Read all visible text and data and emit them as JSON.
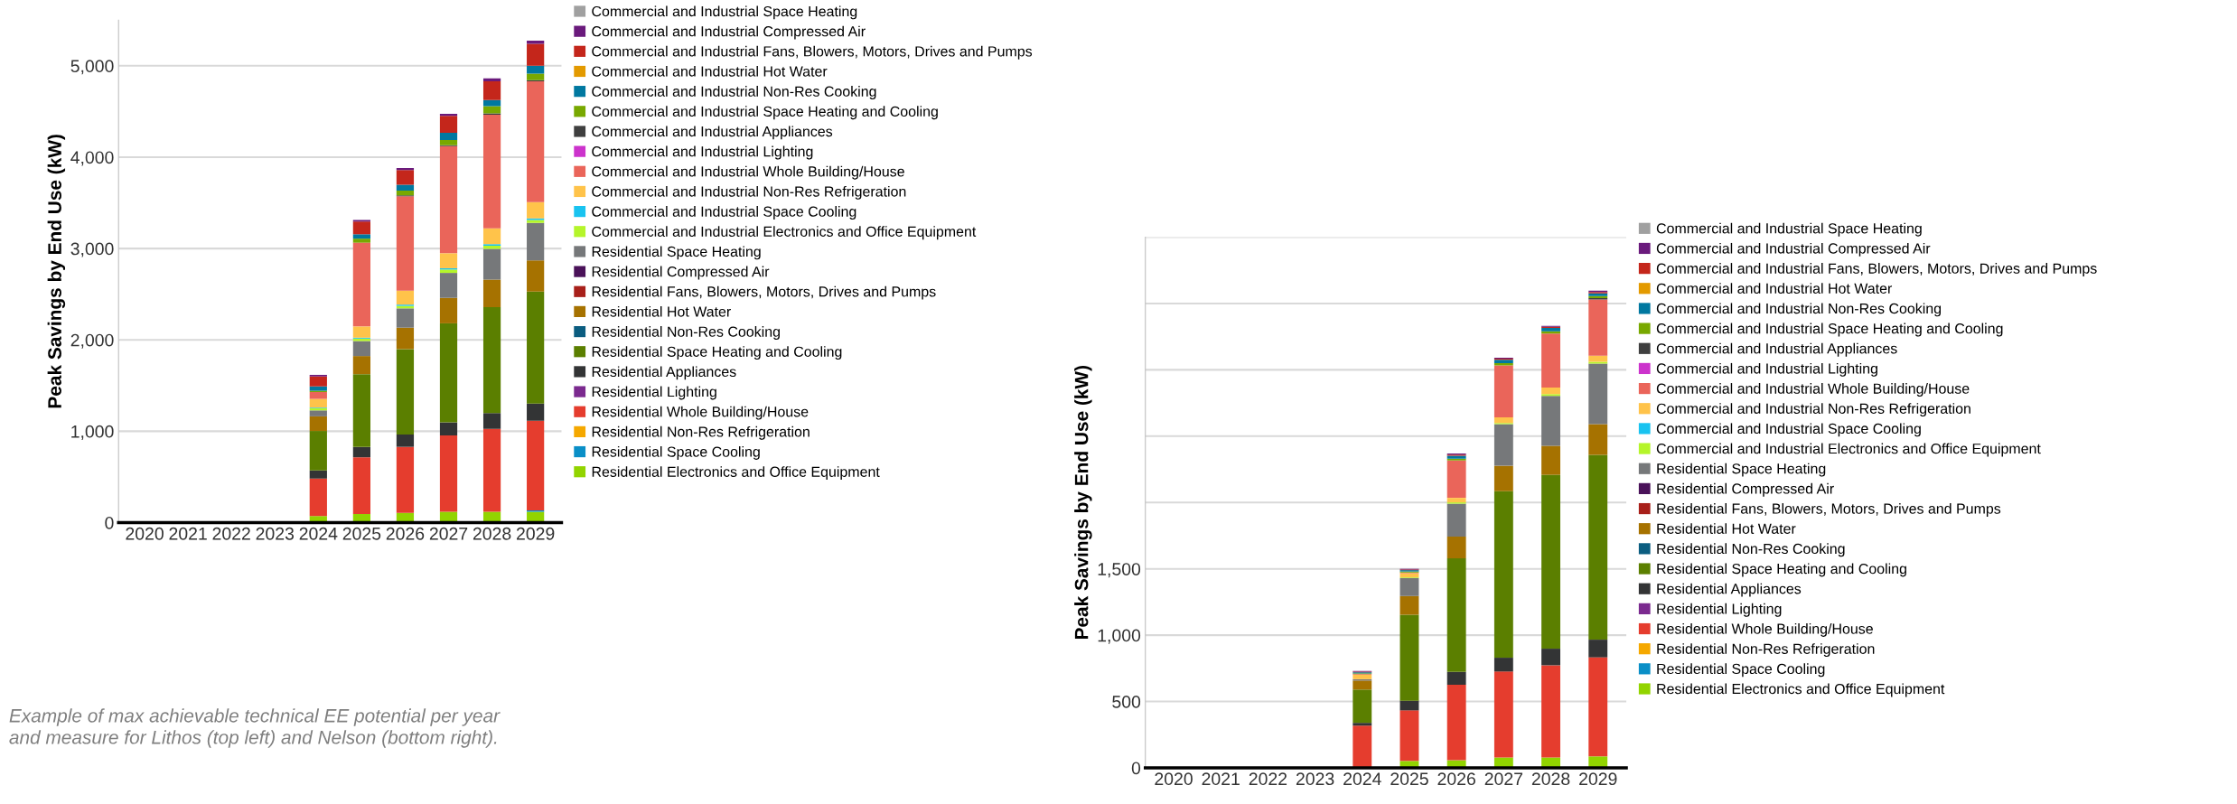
{
  "chart_data": [
    {
      "type": "bar",
      "stacked": true,
      "ylabel": "Peak Savings by End Use (kW)",
      "categories": [
        "2020",
        "2021",
        "2022",
        "2023",
        "2024",
        "2025",
        "2026",
        "2027",
        "2028",
        "2029"
      ],
      "ylim": [
        0,
        5500
      ],
      "yticks": [
        0,
        {
          "value": 1000,
          "label": "1,000"
        },
        {
          "value": 2000,
          "label": "2,000"
        },
        {
          "value": 3000,
          "label": "3,000"
        },
        {
          "value": 4000,
          "label": "4,000"
        },
        {
          "value": 5000,
          "label": "5,000"
        }
      ],
      "grid": "y",
      "legend": "right",
      "annotations": [
        "Example of max achievable technical EE potential per year\nand measure for Lithos (top left) and Nelson (bottom right)."
      ],
      "series": [
        {
          "name": "Residential Electronics and Office Equipment",
          "color": "#92d400",
          "values": [
            0,
            0,
            0,
            0,
            72,
            95,
            106,
            119,
            119,
            119
          ]
        },
        {
          "name": "Residential Space Cooling",
          "color": "#0a8fc7",
          "values": [
            0,
            0,
            0,
            0,
            0,
            0,
            0,
            0,
            0,
            14
          ]
        },
        {
          "name": "Residential Non-Res Refrigeration",
          "color": "#f5a800",
          "values": [
            0,
            0,
            0,
            0,
            0,
            0,
            0,
            0,
            0,
            0
          ]
        },
        {
          "name": "Residential Whole Building/House",
          "color": "#e53d2e",
          "values": [
            0,
            0,
            0,
            0,
            409,
            620,
            723,
            835,
            907,
            982
          ]
        },
        {
          "name": "Residential Lighting",
          "color": "#7b2a8f",
          "values": [
            0,
            0,
            0,
            0,
            0,
            0,
            0,
            0,
            0,
            0
          ]
        },
        {
          "name": "Residential Appliances",
          "color": "#333435",
          "values": [
            0,
            0,
            0,
            0,
            89,
            112,
            136,
            143,
            174,
            187
          ]
        },
        {
          "name": "Residential Space Heating and Cooling",
          "color": "#5b7f00",
          "values": [
            0,
            0,
            0,
            0,
            433,
            798,
            934,
            1084,
            1159,
            1227
          ]
        },
        {
          "name": "Residential Non-Res Cooking",
          "color": "#0b5d80",
          "values": [
            0,
            0,
            0,
            0,
            0,
            0,
            0,
            0,
            0,
            0
          ]
        },
        {
          "name": "Residential Hot Water",
          "color": "#a67200",
          "values": [
            0,
            0,
            0,
            0,
            160,
            198,
            235,
            279,
            300,
            341
          ]
        },
        {
          "name": "Residential Fans, Blowers, Motors, Drives and Pumps",
          "color": "#a8201a",
          "values": [
            0,
            0,
            0,
            0,
            0,
            0,
            0,
            0,
            0,
            0
          ]
        },
        {
          "name": "Residential Compressed Air",
          "color": "#4a1259",
          "values": [
            0,
            0,
            0,
            0,
            0,
            0,
            0,
            0,
            0,
            0
          ]
        },
        {
          "name": "Residential Space Heating",
          "color": "#76787a",
          "values": [
            0,
            0,
            0,
            0,
            65,
            164,
            211,
            273,
            337,
            409
          ]
        },
        {
          "name": "Commercial and Industrial Electronics and Office Equipment",
          "color": "#b5f52a",
          "values": [
            0,
            0,
            0,
            0,
            24,
            27,
            27,
            37,
            34,
            34
          ]
        },
        {
          "name": "Commercial and Industrial Space Cooling",
          "color": "#19c3f0",
          "values": [
            0,
            0,
            0,
            0,
            7,
            10,
            14,
            14,
            17,
            17
          ]
        },
        {
          "name": "Commercial and Industrial Non-Res Refrigeration",
          "color": "#ffc34a",
          "values": [
            0,
            0,
            0,
            0,
            95,
            123,
            153,
            164,
            174,
            177
          ]
        },
        {
          "name": "Commercial and Industrial Whole Building/House",
          "color": "#ea655a",
          "values": [
            0,
            0,
            0,
            0,
            75,
            917,
            1033,
            1172,
            1244,
            1322
          ]
        },
        {
          "name": "Commercial and Industrial Lighting",
          "color": "#cc33cc",
          "values": [
            0,
            0,
            0,
            0,
            0,
            0,
            0,
            0,
            0,
            0
          ]
        },
        {
          "name": "Commercial and Industrial Appliances",
          "color": "#3f3f3f",
          "values": [
            0,
            0,
            0,
            0,
            0,
            0,
            10,
            10,
            14,
            14
          ]
        },
        {
          "name": "Commercial and Industrial Space Heating and Cooling",
          "color": "#78a800",
          "values": [
            0,
            0,
            0,
            0,
            14,
            44,
            51,
            58,
            78,
            72
          ]
        },
        {
          "name": "Commercial and Industrial Non-Res Cooking",
          "color": "#0078a0",
          "values": [
            0,
            0,
            0,
            0,
            48,
            48,
            65,
            78,
            68,
            85
          ]
        },
        {
          "name": "Commercial and Industrial Hot Water",
          "color": "#e39a00",
          "values": [
            0,
            0,
            0,
            0,
            0,
            0,
            0,
            0,
            0,
            0
          ]
        },
        {
          "name": "Commercial and Industrial Fans, Blowers, Motors, Drives and Pumps",
          "color": "#c4261b",
          "values": [
            0,
            0,
            0,
            0,
            109,
            140,
            160,
            187,
            204,
            240
          ]
        },
        {
          "name": "Commercial and Industrial Compressed Air",
          "color": "#6a1a7c",
          "values": [
            0,
            0,
            0,
            0,
            17,
            17,
            24,
            20,
            34,
            34
          ]
        },
        {
          "name": "Commercial and Industrial Space Heating",
          "color": "#a0a0a0",
          "values": [
            0,
            0,
            0,
            0,
            0,
            0,
            0,
            0,
            0,
            0
          ]
        }
      ]
    },
    {
      "type": "bar",
      "stacked": true,
      "ylabel": "Peak Savings by End Use (kW)",
      "categories": [
        "2020",
        "2021",
        "2022",
        "2023",
        "2024",
        "2025",
        "2026",
        "2027",
        "2028",
        "2029"
      ],
      "ylim": [
        0,
        4000
      ],
      "yticks": [
        0,
        500,
        {
          "value": 1000,
          "label": "1,000"
        },
        {
          "value": 1500,
          "label": "1,500"
        },
        {
          "value": 2000,
          "label": null
        },
        {
          "value": 2500,
          "label": null
        },
        {
          "value": 3000,
          "label": null
        },
        {
          "value": 3500,
          "label": null
        },
        {
          "value": 4000,
          "label": null
        }
      ],
      "grid": "y",
      "legend": "right",
      "series": [
        {
          "name": "Residential Electronics and Office Equipment",
          "color": "#92d400",
          "values": [
            0,
            0,
            0,
            0,
            0,
            52,
            57,
            78,
            78,
            86
          ]
        },
        {
          "name": "Residential Space Cooling",
          "color": "#0a8fc7",
          "values": [
            0,
            0,
            0,
            0,
            0,
            0,
            0,
            0,
            0,
            0
          ]
        },
        {
          "name": "Residential Non-Res Refrigeration",
          "color": "#f5a800",
          "values": [
            0,
            0,
            0,
            0,
            0,
            0,
            0,
            0,
            0,
            0
          ]
        },
        {
          "name": "Residential Whole Building/House",
          "color": "#e53d2e",
          "values": [
            0,
            0,
            0,
            0,
            318,
            381,
            569,
            648,
            695,
            747
          ]
        },
        {
          "name": "Residential Lighting",
          "color": "#7b2a8f",
          "values": [
            0,
            0,
            0,
            0,
            0,
            0,
            0,
            0,
            0,
            0
          ]
        },
        {
          "name": "Residential Appliances",
          "color": "#333435",
          "values": [
            0,
            0,
            0,
            0,
            21,
            73,
            97,
            104,
            125,
            133
          ]
        },
        {
          "name": "Residential Space Heating and Cooling",
          "color": "#5b7f00",
          "values": [
            0,
            0,
            0,
            0,
            251,
            648,
            856,
            1256,
            1311,
            1394
          ]
        },
        {
          "name": "Residential Non-Res Cooking",
          "color": "#0b5d80",
          "values": [
            0,
            0,
            0,
            0,
            0,
            0,
            0,
            0,
            0,
            0
          ]
        },
        {
          "name": "Residential Hot Water",
          "color": "#a67200",
          "values": [
            0,
            0,
            0,
            0,
            68,
            141,
            164,
            191,
            219,
            230
          ]
        },
        {
          "name": "Residential Fans, Blowers, Motors, Drives and Pumps",
          "color": "#a8201a",
          "values": [
            0,
            0,
            0,
            0,
            0,
            0,
            0,
            0,
            0,
            0
          ]
        },
        {
          "name": "Residential Compressed Air",
          "color": "#4a1259",
          "values": [
            0,
            0,
            0,
            0,
            0,
            0,
            0,
            0,
            0,
            0
          ]
        },
        {
          "name": "Residential Space Heating",
          "color": "#76787a",
          "values": [
            0,
            0,
            0,
            0,
            10,
            136,
            248,
            313,
            376,
            457
          ]
        },
        {
          "name": "Commercial and Industrial Electronics and Office Equipment",
          "color": "#b5f52a",
          "values": [
            0,
            0,
            0,
            0,
            0,
            5,
            10,
            10,
            13,
            13
          ]
        },
        {
          "name": "Commercial and Industrial Space Cooling",
          "color": "#19c3f0",
          "values": [
            0,
            0,
            0,
            0,
            0,
            0,
            0,
            0,
            0,
            0
          ]
        },
        {
          "name": "Commercial and Industrial Non-Res Refrigeration",
          "color": "#ffc34a",
          "values": [
            0,
            0,
            0,
            0,
            34,
            31,
            34,
            42,
            50,
            47
          ]
        },
        {
          "name": "Commercial and Industrial Whole Building/House",
          "color": "#ea655a",
          "values": [
            0,
            0,
            0,
            0,
            5,
            5,
            282,
            392,
            407,
            423
          ]
        },
        {
          "name": "Commercial and Industrial Lighting",
          "color": "#cc33cc",
          "values": [
            0,
            0,
            0,
            0,
            0,
            0,
            0,
            0,
            0,
            0
          ]
        },
        {
          "name": "Commercial and Industrial Appliances",
          "color": "#3f3f3f",
          "values": [
            0,
            0,
            0,
            0,
            0,
            0,
            0,
            0,
            0,
            10
          ]
        },
        {
          "name": "Commercial and Industrial Space Heating and Cooling",
          "color": "#78a800",
          "values": [
            0,
            0,
            0,
            0,
            5,
            8,
            13,
            16,
            16,
            16
          ]
        },
        {
          "name": "Commercial and Industrial Non-Res Cooking",
          "color": "#0078a0",
          "values": [
            0,
            0,
            0,
            0,
            8,
            10,
            23,
            26,
            26,
            21
          ]
        },
        {
          "name": "Commercial and Industrial Hot Water",
          "color": "#e39a00",
          "values": [
            0,
            0,
            0,
            0,
            0,
            0,
            0,
            0,
            0,
            0
          ]
        },
        {
          "name": "Commercial and Industrial Fans, Blowers, Motors, Drives and Pumps",
          "color": "#c4261b",
          "values": [
            0,
            0,
            0,
            0,
            5,
            5,
            8,
            8,
            8,
            10
          ]
        },
        {
          "name": "Commercial and Industrial Compressed Air",
          "color": "#6a1a7c",
          "values": [
            0,
            0,
            0,
            0,
            5,
            5,
            8,
            8,
            8,
            10
          ]
        },
        {
          "name": "Commercial and Industrial Space Heating",
          "color": "#a0a0a0",
          "values": [
            0,
            0,
            0,
            0,
            0,
            0,
            0,
            0,
            0,
            0
          ]
        }
      ]
    }
  ]
}
